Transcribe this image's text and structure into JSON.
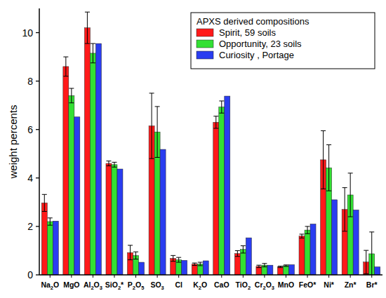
{
  "chart_data": {
    "type": "bar",
    "y_label": "weight percents",
    "categories": [
      "Na2O",
      "MgO",
      "Al2O3",
      "SiO2*",
      "P2O5",
      "SO3",
      "Cl",
      "K2O",
      "CaO",
      "TiO2",
      "Cr2O3",
      "MnO",
      "FeO*",
      "Ni*",
      "Zn*",
      "Br*"
    ],
    "series": [
      {
        "name": "Spirit, 59 soils",
        "color": "#ff1a1a",
        "values": [
          2.97,
          8.6,
          10.2,
          4.6,
          0.92,
          6.15,
          0.68,
          0.44,
          6.3,
          0.88,
          0.35,
          0.33,
          1.6,
          4.75,
          2.7,
          0.53
        ],
        "errors": [
          0.35,
          0.4,
          0.65,
          0.1,
          0.3,
          1.35,
          0.12,
          0.05,
          0.25,
          0.12,
          0.05,
          0.03,
          0.08,
          1.2,
          0.9,
          0.48
        ]
      },
      {
        "name": "Opportunity, 23 soils",
        "color": "#33e033",
        "values": [
          2.2,
          7.4,
          9.15,
          4.55,
          0.8,
          5.9,
          0.62,
          0.45,
          6.93,
          1.05,
          0.4,
          0.38,
          1.85,
          4.42,
          3.3,
          0.87
        ],
        "errors": [
          0.15,
          0.3,
          0.4,
          0.1,
          0.15,
          1.05,
          0.1,
          0.07,
          0.25,
          0.15,
          0.07,
          0.03,
          0.15,
          0.95,
          0.9,
          0.9
        ]
      },
      {
        "name": "Curiosity , Portage",
        "color": "#2a3df0",
        "values": [
          2.22,
          6.52,
          9.55,
          4.37,
          0.52,
          5.18,
          0.6,
          0.58,
          7.38,
          1.53,
          0.4,
          0.42,
          2.1,
          3.1,
          2.68,
          0.33
        ]
      }
    ],
    "legend_title": "APXS derived compositions",
    "legend": "upper right",
    "ylim": [
      0,
      11
    ],
    "yticks": [
      0,
      2,
      4,
      6,
      8,
      10
    ]
  }
}
